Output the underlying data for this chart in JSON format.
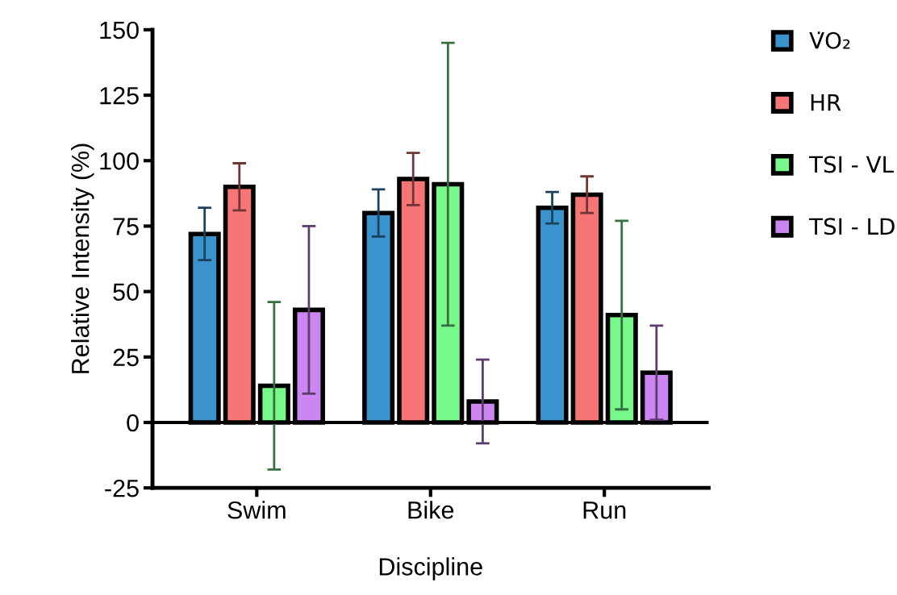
{
  "chart_data": {
    "type": "bar",
    "xlabel": "Discipline",
    "ylabel": "Relative Intensity (%)",
    "categories": [
      "Swim",
      "Bike",
      "Run"
    ],
    "series": [
      {
        "name": "V̇O₂",
        "color": "#3a93cc",
        "values": [
          72,
          80,
          82
        ],
        "errors": [
          10,
          9,
          6
        ]
      },
      {
        "name": "HR",
        "color": "#f87575",
        "values": [
          90,
          93,
          87
        ],
        "errors": [
          9,
          10,
          7
        ]
      },
      {
        "name": "TSI - VL",
        "color": "#77f98b",
        "values": [
          14,
          91,
          41
        ],
        "errors": [
          32,
          54,
          36
        ]
      },
      {
        "name": "TSI - LD",
        "color": "#cb86f2",
        "values": [
          43,
          8,
          19
        ],
        "errors": [
          32,
          16,
          18
        ]
      }
    ],
    "ylim": [
      -25,
      150
    ],
    "yticks": [
      {
        "value": -25,
        "label": "-25"
      },
      0,
      25,
      50,
      75,
      100,
      125,
      150
    ],
    "ref_lines": [
      {
        "axis": "y",
        "value": 0,
        "color": "#000000"
      }
    ],
    "legend": "top right"
  }
}
